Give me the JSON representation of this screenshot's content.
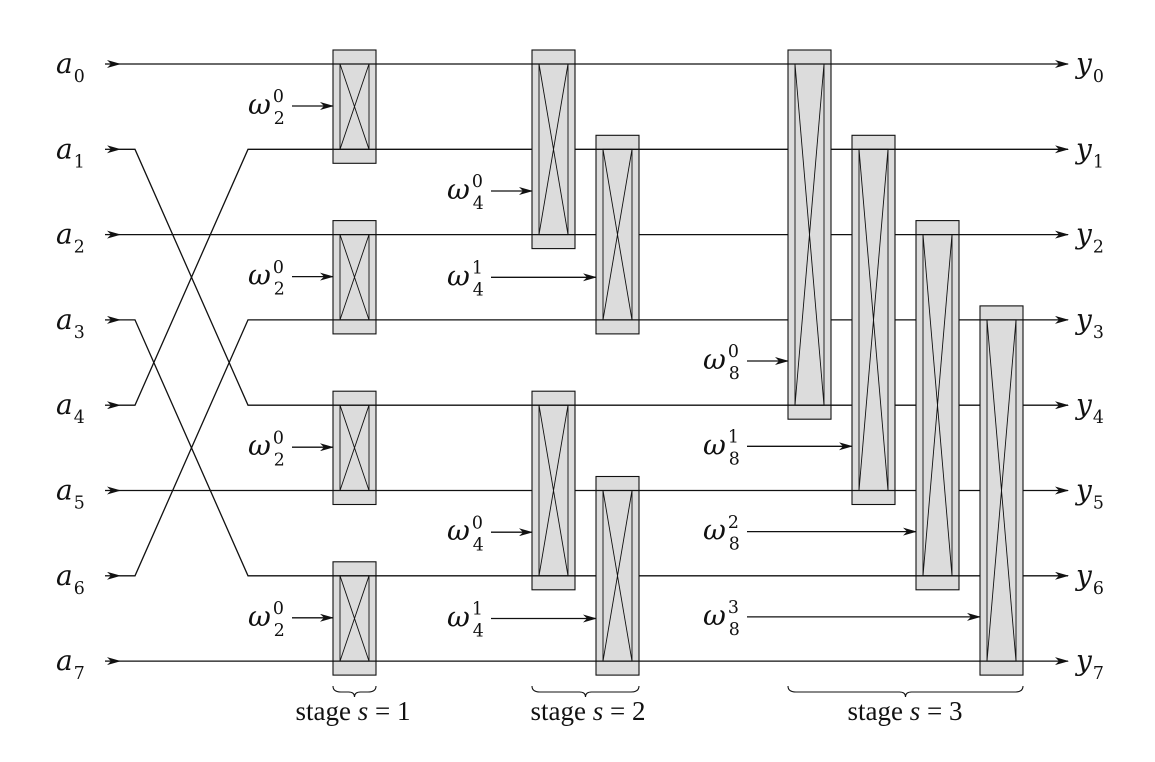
{
  "inputs": [
    {
      "base": "a",
      "sub": "0"
    },
    {
      "base": "a",
      "sub": "1"
    },
    {
      "base": "a",
      "sub": "2"
    },
    {
      "base": "a",
      "sub": "3"
    },
    {
      "base": "a",
      "sub": "4"
    },
    {
      "base": "a",
      "sub": "5"
    },
    {
      "base": "a",
      "sub": "6"
    },
    {
      "base": "a",
      "sub": "7"
    }
  ],
  "outputs": [
    {
      "base": "y",
      "sub": "0"
    },
    {
      "base": "y",
      "sub": "1"
    },
    {
      "base": "y",
      "sub": "2"
    },
    {
      "base": "y",
      "sub": "3"
    },
    {
      "base": "y",
      "sub": "4"
    },
    {
      "base": "y",
      "sub": "5"
    },
    {
      "base": "y",
      "sub": "6"
    },
    {
      "base": "y",
      "sub": "7"
    }
  ],
  "permutation": [
    0,
    4,
    2,
    6,
    1,
    5,
    3,
    7
  ],
  "stages": [
    {
      "label": "stage",
      "var": "s",
      "eq": "=",
      "value": "1",
      "butterflies": [
        {
          "top": 0,
          "bottom": 1,
          "twiddle": {
            "base": "ω",
            "sub": "2",
            "sup": "0"
          }
        },
        {
          "top": 2,
          "bottom": 3,
          "twiddle": {
            "base": "ω",
            "sub": "2",
            "sup": "0"
          }
        },
        {
          "top": 4,
          "bottom": 5,
          "twiddle": {
            "base": "ω",
            "sub": "2",
            "sup": "0"
          }
        },
        {
          "top": 6,
          "bottom": 7,
          "twiddle": {
            "base": "ω",
            "sub": "2",
            "sup": "0"
          }
        }
      ]
    },
    {
      "label": "stage",
      "var": "s",
      "eq": "=",
      "value": "2",
      "butterflies": [
        {
          "top": 0,
          "bottom": 2,
          "twiddle": {
            "base": "ω",
            "sub": "4",
            "sup": "0"
          }
        },
        {
          "top": 1,
          "bottom": 3,
          "twiddle": {
            "base": "ω",
            "sub": "4",
            "sup": "1"
          }
        },
        {
          "top": 4,
          "bottom": 6,
          "twiddle": {
            "base": "ω",
            "sub": "4",
            "sup": "0"
          }
        },
        {
          "top": 5,
          "bottom": 7,
          "twiddle": {
            "base": "ω",
            "sub": "4",
            "sup": "1"
          }
        }
      ]
    },
    {
      "label": "stage",
      "var": "s",
      "eq": "=",
      "value": "3",
      "butterflies": [
        {
          "top": 0,
          "bottom": 4,
          "twiddle": {
            "base": "ω",
            "sub": "8",
            "sup": "0"
          }
        },
        {
          "top": 1,
          "bottom": 5,
          "twiddle": {
            "base": "ω",
            "sub": "8",
            "sup": "1"
          }
        },
        {
          "top": 2,
          "bottom": 6,
          "twiddle": {
            "base": "ω",
            "sub": "8",
            "sup": "2"
          }
        },
        {
          "top": 3,
          "bottom": 7,
          "twiddle": {
            "base": "ω",
            "sub": "8",
            "sup": "3"
          }
        }
      ]
    }
  ]
}
